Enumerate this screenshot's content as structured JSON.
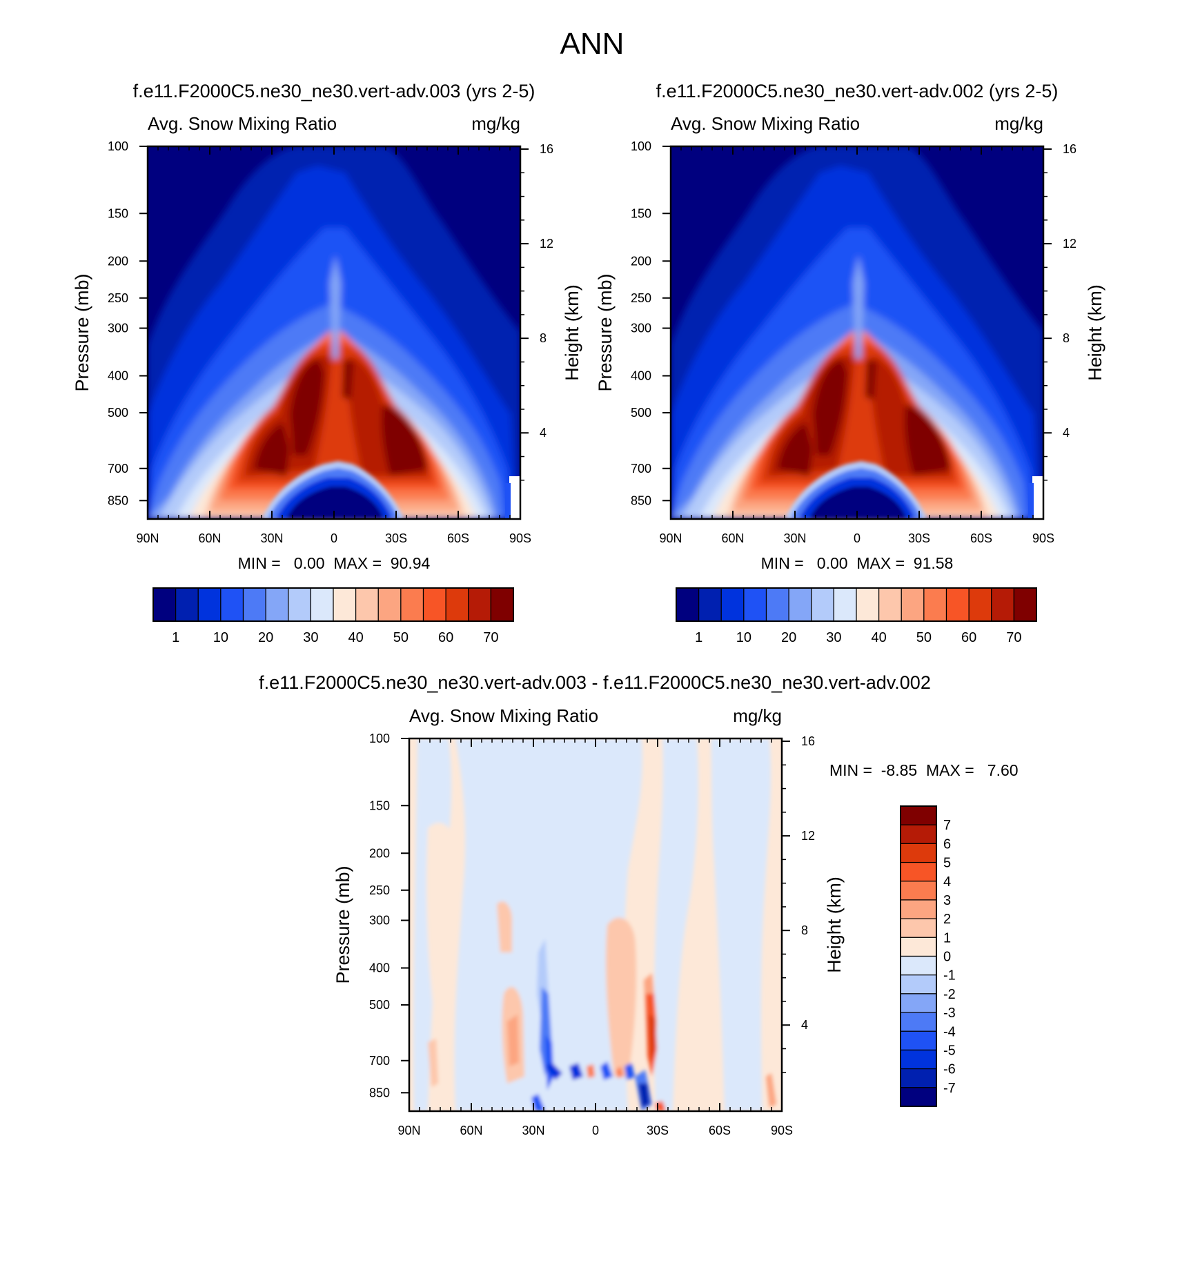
{
  "page_title": "ANN",
  "chart_data": [
    {
      "type": "heatmap",
      "id": "case",
      "title": "f.e11.F2000C5.ne30_ne30.vert-adv.003 (yrs 2-5)",
      "left_string": "Avg. Snow Mixing Ratio",
      "right_string": "mg/kg",
      "xlabel": "",
      "ylabel": "Pressure (mb)",
      "y2label": "Height (km)",
      "xticks": [
        "90N",
        "60N",
        "30N",
        "0",
        "30S",
        "60S",
        "90S"
      ],
      "xvalues": [
        90,
        60,
        30,
        0,
        -30,
        -60,
        -90
      ],
      "yticks": [
        "100",
        "150",
        "200",
        "250",
        "300",
        "400",
        "500",
        "700",
        "850"
      ],
      "yvalues": [
        100,
        150,
        200,
        250,
        300,
        400,
        500,
        700,
        850
      ],
      "ylim": [
        100,
        950
      ],
      "y_scale": "log",
      "y2ticks": [
        "16",
        "12",
        "8",
        "4"
      ],
      "y2values": [
        16,
        12,
        8,
        4
      ],
      "stats_text": "MIN =   0.00  MAX =  90.94",
      "min": 0.0,
      "max": 90.94,
      "colorbar_levels": [
        "1",
        "10",
        "20",
        "30",
        "40",
        "50",
        "60",
        "70"
      ],
      "colorbar_orientation": "horizontal"
    },
    {
      "type": "heatmap",
      "id": "control",
      "title": "f.e11.F2000C5.ne30_ne30.vert-adv.002 (yrs 2-5)",
      "left_string": "Avg. Snow Mixing Ratio",
      "right_string": "mg/kg",
      "xlabel": "",
      "ylabel": "Pressure (mb)",
      "y2label": "Height (km)",
      "xticks": [
        "90N",
        "60N",
        "30N",
        "0",
        "30S",
        "60S",
        "90S"
      ],
      "xvalues": [
        90,
        60,
        30,
        0,
        -30,
        -60,
        -90
      ],
      "yticks": [
        "100",
        "150",
        "200",
        "250",
        "300",
        "400",
        "500",
        "700",
        "850"
      ],
      "yvalues": [
        100,
        150,
        200,
        250,
        300,
        400,
        500,
        700,
        850
      ],
      "ylim": [
        100,
        950
      ],
      "y_scale": "log",
      "y2ticks": [
        "16",
        "12",
        "8",
        "4"
      ],
      "y2values": [
        16,
        12,
        8,
        4
      ],
      "stats_text": "MIN =   0.00  MAX =  91.58",
      "min": 0.0,
      "max": 91.58,
      "colorbar_levels": [
        "1",
        "10",
        "20",
        "30",
        "40",
        "50",
        "60",
        "70"
      ],
      "colorbar_orientation": "horizontal"
    },
    {
      "type": "heatmap",
      "id": "difference",
      "title": "f.e11.F2000C5.ne30_ne30.vert-adv.003 - f.e11.F2000C5.ne30_ne30.vert-adv.002",
      "left_string": "Avg. Snow Mixing Ratio",
      "right_string": "mg/kg",
      "xlabel": "",
      "ylabel": "Pressure (mb)",
      "y2label": "Height (km)",
      "xticks": [
        "90N",
        "60N",
        "30N",
        "0",
        "30S",
        "60S",
        "90S"
      ],
      "xvalues": [
        90,
        60,
        30,
        0,
        -30,
        -60,
        -90
      ],
      "yticks": [
        "100",
        "150",
        "200",
        "250",
        "300",
        "400",
        "500",
        "700",
        "850"
      ],
      "yvalues": [
        100,
        150,
        200,
        250,
        300,
        400,
        500,
        700,
        850
      ],
      "ylim": [
        100,
        950
      ],
      "y_scale": "log",
      "y2ticks": [
        "16",
        "12",
        "8",
        "4"
      ],
      "y2values": [
        16,
        12,
        8,
        4
      ],
      "stats_text": "MIN =  -8.85  MAX =   7.60",
      "min": -8.85,
      "max": 7.6,
      "colorbar_levels": [
        "7",
        "6",
        "5",
        "4",
        "3",
        "2",
        "1",
        "0",
        "-1",
        "-2",
        "-3",
        "-4",
        "-5",
        "-6",
        "-7"
      ],
      "colorbar_orientation": "vertical"
    }
  ],
  "colors": {
    "abs_palette": [
      "#00007f",
      "#0020b0",
      "#0033dd",
      "#1f52f5",
      "#4d7af6",
      "#84a6f7",
      "#b3cbfa",
      "#dbe8fb",
      "#fde8d8",
      "#fdc7ac",
      "#fca581",
      "#fb7c4f",
      "#f75526",
      "#dd3a0c",
      "#b51b06",
      "#7f0000"
    ],
    "diff_palette": [
      "#7f0000",
      "#b51b06",
      "#dd3a0c",
      "#f75526",
      "#fb7c4f",
      "#fca581",
      "#fdc7ac",
      "#fde8d8",
      "#dbe8fb",
      "#b3cbfa",
      "#84a6f7",
      "#4d7af6",
      "#1f52f5",
      "#0033dd",
      "#0020b0",
      "#00007f"
    ]
  }
}
